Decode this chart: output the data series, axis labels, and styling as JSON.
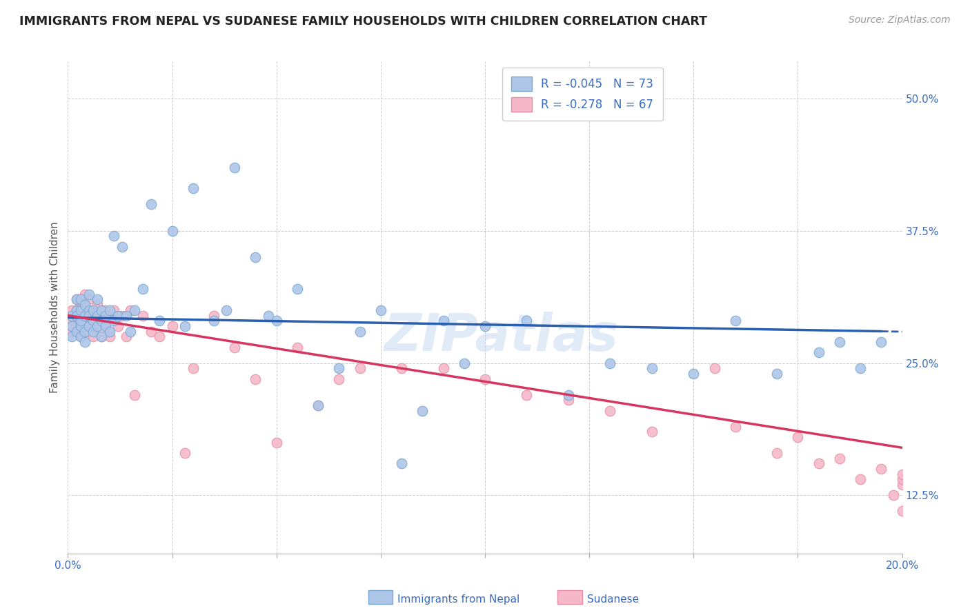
{
  "title": "IMMIGRANTS FROM NEPAL VS SUDANESE FAMILY HOUSEHOLDS WITH CHILDREN CORRELATION CHART",
  "source": "Source: ZipAtlas.com",
  "ylabel": "Family Households with Children",
  "xmin": 0.0,
  "xmax": 0.2,
  "ymin": 0.07,
  "ymax": 0.535,
  "yticks": [
    0.125,
    0.25,
    0.375,
    0.5
  ],
  "ytick_labels": [
    "12.5%",
    "25.0%",
    "37.5%",
    "50.0%"
  ],
  "xticks_bottom": [
    0.0,
    0.2
  ],
  "xtick_labels_bottom": [
    "0.0%",
    "20.0%"
  ],
  "nepal_color": "#aec6e8",
  "nepal_edge": "#7aa8d4",
  "sudanese_color": "#f4b8c8",
  "sudanese_edge": "#e88ca8",
  "trendline_nepal_color": "#2b5fad",
  "trendline_sudanese_color": "#d63560",
  "watermark": "ZIPatlas",
  "legend_r1": "R = -0.045",
  "legend_n1": "N = 73",
  "legend_r2": "R = -0.278",
  "legend_n2": "N = 67",
  "nepal_x": [
    0.001,
    0.001,
    0.001,
    0.002,
    0.002,
    0.002,
    0.002,
    0.003,
    0.003,
    0.003,
    0.003,
    0.003,
    0.004,
    0.004,
    0.004,
    0.004,
    0.005,
    0.005,
    0.005,
    0.005,
    0.006,
    0.006,
    0.006,
    0.007,
    0.007,
    0.007,
    0.008,
    0.008,
    0.008,
    0.009,
    0.009,
    0.01,
    0.01,
    0.011,
    0.011,
    0.012,
    0.013,
    0.014,
    0.015,
    0.016,
    0.018,
    0.02,
    0.022,
    0.025,
    0.028,
    0.03,
    0.035,
    0.038,
    0.04,
    0.045,
    0.048,
    0.05,
    0.055,
    0.06,
    0.065,
    0.07,
    0.075,
    0.08,
    0.085,
    0.09,
    0.095,
    0.1,
    0.11,
    0.12,
    0.13,
    0.14,
    0.15,
    0.16,
    0.17,
    0.18,
    0.185,
    0.19,
    0.195
  ],
  "nepal_y": [
    0.285,
    0.295,
    0.275,
    0.3,
    0.28,
    0.31,
    0.295,
    0.285,
    0.3,
    0.275,
    0.31,
    0.29,
    0.295,
    0.28,
    0.305,
    0.27,
    0.3,
    0.285,
    0.295,
    0.315,
    0.29,
    0.28,
    0.3,
    0.285,
    0.295,
    0.31,
    0.275,
    0.29,
    0.3,
    0.285,
    0.295,
    0.28,
    0.3,
    0.37,
    0.29,
    0.295,
    0.36,
    0.295,
    0.28,
    0.3,
    0.32,
    0.4,
    0.29,
    0.375,
    0.285,
    0.415,
    0.29,
    0.3,
    0.435,
    0.35,
    0.295,
    0.29,
    0.32,
    0.21,
    0.245,
    0.28,
    0.3,
    0.155,
    0.205,
    0.29,
    0.25,
    0.285,
    0.29,
    0.22,
    0.25,
    0.245,
    0.24,
    0.29,
    0.24,
    0.26,
    0.27,
    0.245,
    0.27
  ],
  "sudanese_x": [
    0.001,
    0.001,
    0.001,
    0.002,
    0.002,
    0.002,
    0.002,
    0.003,
    0.003,
    0.003,
    0.003,
    0.004,
    0.004,
    0.004,
    0.005,
    0.005,
    0.005,
    0.006,
    0.006,
    0.007,
    0.007,
    0.008,
    0.008,
    0.009,
    0.009,
    0.01,
    0.01,
    0.011,
    0.012,
    0.013,
    0.014,
    0.015,
    0.016,
    0.018,
    0.02,
    0.022,
    0.025,
    0.028,
    0.03,
    0.035,
    0.04,
    0.045,
    0.05,
    0.055,
    0.06,
    0.065,
    0.07,
    0.08,
    0.09,
    0.1,
    0.11,
    0.12,
    0.13,
    0.14,
    0.155,
    0.16,
    0.17,
    0.175,
    0.18,
    0.185,
    0.19,
    0.195,
    0.198,
    0.2,
    0.2,
    0.2,
    0.2
  ],
  "sudanese_y": [
    0.29,
    0.3,
    0.28,
    0.295,
    0.31,
    0.285,
    0.3,
    0.28,
    0.295,
    0.305,
    0.275,
    0.3,
    0.285,
    0.315,
    0.295,
    0.28,
    0.31,
    0.295,
    0.275,
    0.305,
    0.285,
    0.295,
    0.275,
    0.3,
    0.285,
    0.295,
    0.275,
    0.3,
    0.285,
    0.295,
    0.275,
    0.3,
    0.22,
    0.295,
    0.28,
    0.275,
    0.285,
    0.165,
    0.245,
    0.295,
    0.265,
    0.235,
    0.175,
    0.265,
    0.21,
    0.235,
    0.245,
    0.245,
    0.245,
    0.235,
    0.22,
    0.215,
    0.205,
    0.185,
    0.245,
    0.19,
    0.165,
    0.18,
    0.155,
    0.16,
    0.14,
    0.15,
    0.125,
    0.135,
    0.14,
    0.145,
    0.11
  ],
  "nepal_trendline_x0": 0.0,
  "nepal_trendline_y0": 0.293,
  "nepal_trendline_x1": 0.195,
  "nepal_trendline_y1": 0.28,
  "nepal_trendline_xdash0": 0.195,
  "nepal_trendline_xdash1": 0.2,
  "sudanese_trendline_x0": 0.0,
  "sudanese_trendline_y0": 0.295,
  "sudanese_trendline_x1": 0.2,
  "sudanese_trendline_y1": 0.17
}
